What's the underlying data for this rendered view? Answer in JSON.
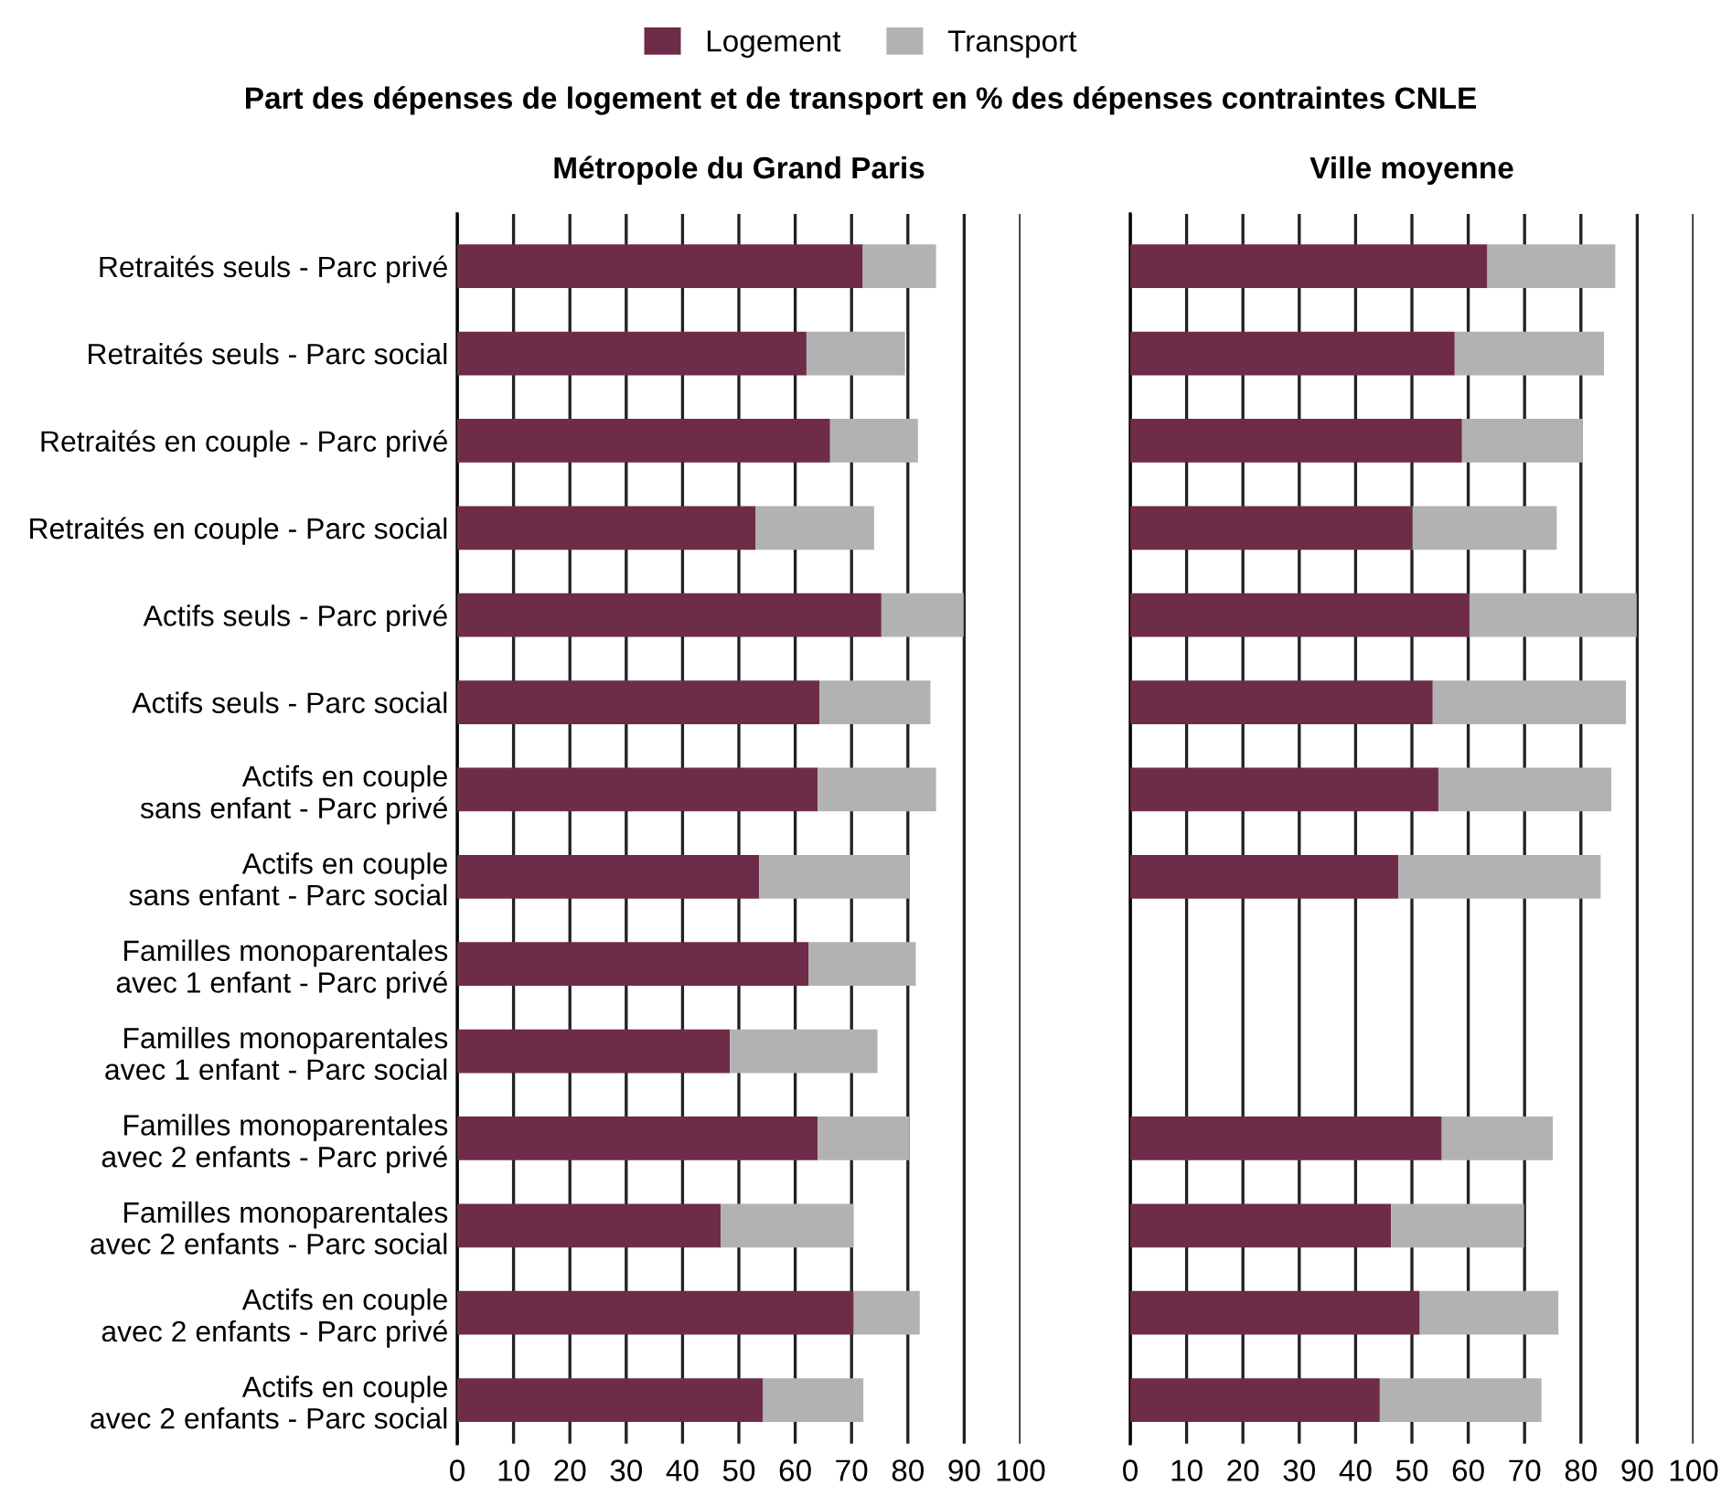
{
  "chart_data": [
    {
      "type": "bar",
      "orientation": "horizontal",
      "stacked": true,
      "title": "Part des dépenses de logement et de transport en % des dépenses contraintes CNLE",
      "subtitle": "Métropole du Grand Paris",
      "categories": [
        "Retraités seuls - Parc privé",
        "Retraités seuls - Parc social",
        "Retraités en couple - Parc privé",
        "Retraités en couple - Parc social",
        "Actifs seuls - Parc privé",
        "Actifs seuls - Parc social",
        "Actifs en couple\nsans enfant - Parc privé",
        "Actifs en couple\nsans enfant - Parc social",
        "Familles monoparentales\navec 1 enfant - Parc privé",
        "Familles monoparentales\navec 1 enfant - Parc social",
        "Familles monoparentales\navec 2 enfants - Parc privé",
        "Familles monoparentales\navec 2 enfants - Parc social",
        "Actifs en couple\navec 2 enfants - Parc privé",
        "Actifs en couple\navec 2 enfants - Parc social"
      ],
      "series": [
        {
          "name": "Logement",
          "color": "#6e2c48",
          "values": [
            72.0,
            62.0,
            66.2,
            53.0,
            75.3,
            64.3,
            64.0,
            53.6,
            62.4,
            48.4,
            64.0,
            46.8,
            70.4,
            54.3
          ]
        },
        {
          "name": "Transport",
          "color": "#b2b2b2",
          "values": [
            13.0,
            17.5,
            15.6,
            21.0,
            14.6,
            19.7,
            21.0,
            26.7,
            19.0,
            26.2,
            16.2,
            23.6,
            11.7,
            17.8
          ]
        }
      ],
      "xlim": [
        0,
        100
      ],
      "xticks": [
        0,
        10,
        20,
        30,
        40,
        50,
        60,
        70,
        80,
        90,
        100
      ],
      "grid": "x",
      "legend": "top"
    },
    {
      "type": "bar",
      "orientation": "horizontal",
      "stacked": true,
      "subtitle": "Ville moyenne",
      "categories": [
        null,
        null,
        null,
        null,
        null,
        null,
        null,
        null,
        null,
        null,
        null,
        null,
        null,
        null
      ],
      "series": [
        {
          "color": "#6e2c48",
          "values": [
            63.4,
            57.6,
            58.9,
            50.1,
            60.2,
            53.7,
            54.7,
            47.6,
            null,
            null,
            55.3,
            46.3,
            51.4,
            44.3
          ]
        },
        {
          "color": "#b2b2b2",
          "values": [
            22.7,
            26.5,
            21.4,
            25.6,
            29.7,
            34.3,
            30.7,
            35.9,
            null,
            null,
            19.7,
            23.6,
            24.6,
            28.7
          ]
        }
      ],
      "xlim": [
        0,
        100
      ],
      "xticks": [
        0,
        10,
        20,
        30,
        40,
        50,
        60,
        70,
        80,
        90,
        100
      ],
      "grid": "x",
      "tick_labels": "x"
    }
  ]
}
